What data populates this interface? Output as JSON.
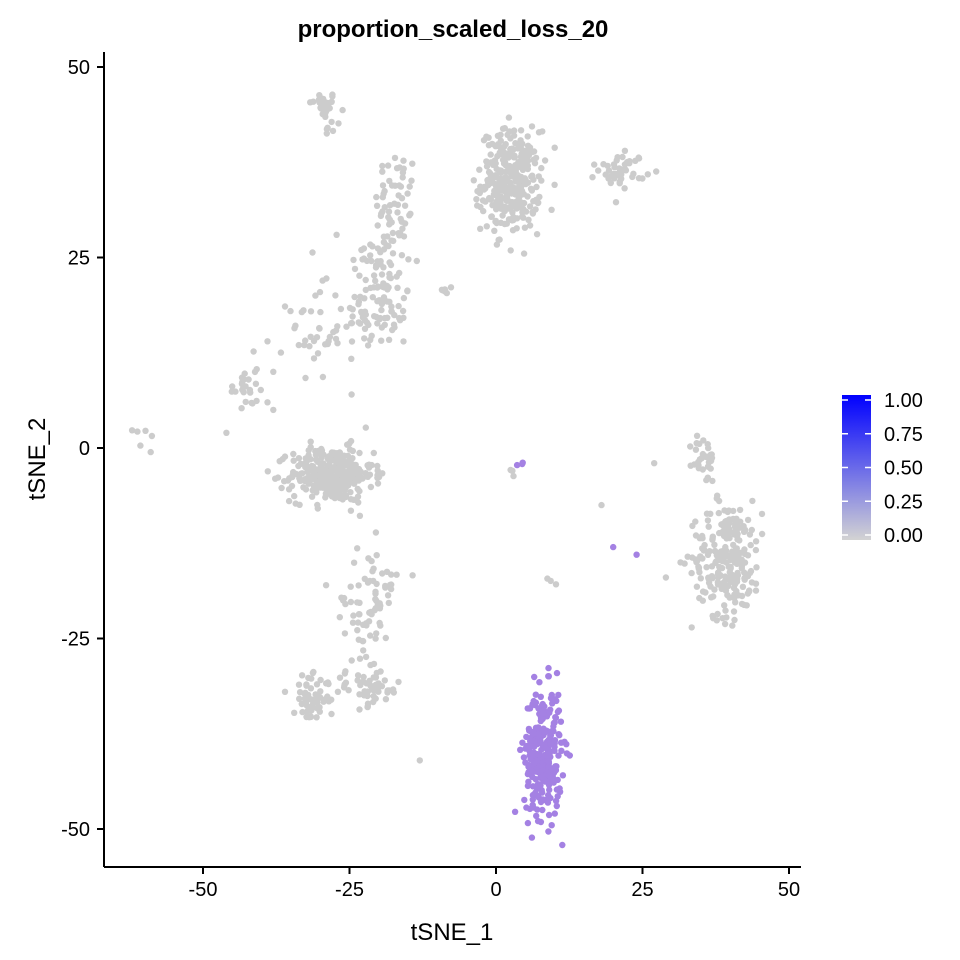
{
  "chart_data": {
    "type": "scatter",
    "title": "proportion_scaled_loss_20",
    "xlabel": "tSNE_1",
    "ylabel": "tSNE_2",
    "xlim": [
      -68,
      52
    ],
    "ylim": [
      -55,
      52
    ],
    "x_ticks": [
      -50,
      -25,
      0,
      25,
      50
    ],
    "y_ticks": [
      50,
      25,
      0,
      -25,
      -50
    ],
    "grid": false,
    "legend": {
      "placement": "right",
      "type": "colorbar",
      "ticks": [
        "1.00",
        "0.75",
        "0.50",
        "0.25",
        "0.00"
      ],
      "tick_values": [
        1.0,
        0.75,
        0.5,
        0.25,
        0.0
      ],
      "low_color": "#d3d3d3",
      "high_color": "#0000ff"
    },
    "colors": {
      "zero": "#cccccc",
      "point": "#a481e3"
    },
    "clusters": [
      {
        "label": "top-left small",
        "cx": -29.5,
        "cy": 45,
        "sx": 1.2,
        "sy": 0.9,
        "n": 30,
        "value": 0
      },
      {
        "label": "top-left tail",
        "cx": -28,
        "cy": 42,
        "sx": 1.0,
        "sy": 0.6,
        "n": 6,
        "value": 0
      },
      {
        "label": "upper-left elongated top",
        "cx": -17,
        "cy": 33,
        "sx": 1.8,
        "sy": 3.0,
        "n": 50,
        "value": 0
      },
      {
        "label": "upper-left elongated mid",
        "cx": -20,
        "cy": 24,
        "sx": 2.8,
        "sy": 3.5,
        "n": 60,
        "value": 0
      },
      {
        "label": "upper-left elongated low",
        "cx": -20,
        "cy": 17.5,
        "sx": 3.0,
        "sy": 2.5,
        "n": 70,
        "value": 0
      },
      {
        "label": "left curve",
        "cx": -31,
        "cy": 15,
        "sx": 2.3,
        "sy": 3.0,
        "n": 35,
        "value": 0
      },
      {
        "label": "far-left small",
        "cx": -43,
        "cy": 8,
        "sx": 1.2,
        "sy": 2.0,
        "n": 25,
        "value": 0
      },
      {
        "label": "small dot cluster",
        "cx": -8,
        "cy": 20.8,
        "sx": 0.6,
        "sy": 0.3,
        "n": 6,
        "value": 0
      },
      {
        "label": "top center big",
        "cx": 2.5,
        "cy": 35,
        "sx": 2.5,
        "sy": 3.3,
        "n": 320,
        "value": 0
      },
      {
        "label": "top right",
        "cx": 21.5,
        "cy": 36.5,
        "sx": 2.0,
        "sy": 1.1,
        "n": 45,
        "value": 0
      },
      {
        "label": "left outlier",
        "cx": -60,
        "cy": 1,
        "sx": 1.0,
        "sy": 0.8,
        "n": 6,
        "value": 0
      },
      {
        "label": "dense left-center",
        "cx": -28,
        "cy": -3.5,
        "sx": 3.5,
        "sy": 1.8,
        "n": 330,
        "value": 0
      },
      {
        "label": "right small",
        "cx": 35.5,
        "cy": -1.5,
        "sx": 1.0,
        "sy": 1.5,
        "n": 30,
        "value": 0
      },
      {
        "label": "right large",
        "cx": 39.5,
        "cy": -14.5,
        "sx": 3.0,
        "sy": 3.8,
        "n": 230,
        "value": 0
      },
      {
        "label": "bottom-left arm top",
        "cx": -20,
        "cy": -18,
        "sx": 1.8,
        "sy": 3.0,
        "n": 40,
        "value": 0
      },
      {
        "label": "bottom-left arm mid",
        "cx": -22,
        "cy": -23,
        "sx": 1.5,
        "sy": 2.0,
        "n": 25,
        "value": 0
      },
      {
        "label": "bottom-left arm scattered",
        "cx": -25,
        "cy": -20,
        "sx": 2.0,
        "sy": 1.2,
        "n": 8,
        "value": 0
      },
      {
        "label": "bottom-left cluster",
        "cx": -31.5,
        "cy": -33,
        "sx": 1.5,
        "sy": 1.5,
        "n": 60,
        "value": 0
      },
      {
        "label": "bottom-left diagonal",
        "cx": -22,
        "cy": -31.5,
        "sx": 3.0,
        "sy": 1.2,
        "n": 55,
        "value": 0
      },
      {
        "label": "bottom center highlighted",
        "cx": 8,
        "cy": -40,
        "sx": 1.6,
        "sy": 4.2,
        "n": 280,
        "value": 0.3
      },
      {
        "label": "center tiny highlighted",
        "cx": 4.5,
        "cy": -2.2,
        "sx": 0.3,
        "sy": 0.2,
        "n": 3,
        "value": 0.3
      },
      {
        "label": "center tiny grey",
        "cx": 2.5,
        "cy": -3,
        "sx": 0.6,
        "sy": 0.4,
        "n": 3,
        "value": 0
      },
      {
        "label": "center lower grey",
        "cx": 9,
        "cy": -17.5,
        "sx": 0.6,
        "sy": 0.8,
        "n": 3,
        "value": 0
      }
    ],
    "outliers": [
      {
        "x": -38,
        "y": 10,
        "value": 0
      },
      {
        "x": -39,
        "y": 14,
        "value": 0
      },
      {
        "x": -46,
        "y": 2,
        "value": 0
      },
      {
        "x": -39,
        "y": 6,
        "value": 0
      },
      {
        "x": -38,
        "y": 5,
        "value": 0
      },
      {
        "x": -13,
        "y": -41,
        "value": 0
      },
      {
        "x": -29,
        "y": -18,
        "value": 0
      },
      {
        "x": -36,
        "y": -32,
        "value": 0
      },
      {
        "x": 18,
        "y": -7.5,
        "value": 0
      },
      {
        "x": 29,
        "y": -17,
        "value": 0
      },
      {
        "x": 20,
        "y": -13,
        "value": 0.3
      },
      {
        "x": 24,
        "y": -14,
        "value": 0.3
      },
      {
        "x": 22,
        "y": 39,
        "value": 0
      },
      {
        "x": 27,
        "y": -2,
        "value": 0
      }
    ]
  }
}
